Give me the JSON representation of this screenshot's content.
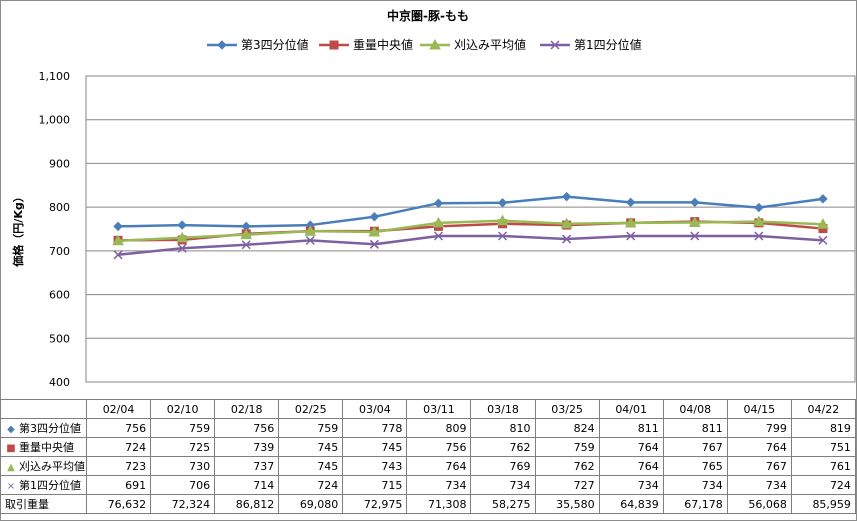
{
  "chart_data": {
    "type": "line",
    "title": "中京圏-豚-もも",
    "ylabel": "価格（円/Kg）",
    "xlabel": "",
    "ylim": [
      400,
      1100
    ],
    "yticks": [
      400,
      500,
      600,
      700,
      800,
      900,
      1000,
      1100
    ],
    "ytick_labels": [
      "400",
      "500",
      "600",
      "700",
      "800",
      "900",
      "1,000",
      "1,100"
    ],
    "grid": true,
    "legend_position": "top",
    "categories": [
      "02/04",
      "02/10",
      "02/18",
      "02/25",
      "03/04",
      "03/11",
      "03/18",
      "03/25",
      "04/01",
      "04/08",
      "04/15",
      "04/22"
    ],
    "series": [
      {
        "name": "第3四分位値",
        "color": "#4a7ebb",
        "marker": "diamond",
        "values": [
          756,
          759,
          756,
          759,
          778,
          809,
          810,
          824,
          811,
          811,
          799,
          819
        ],
        "display": [
          "756",
          "759",
          "756",
          "759",
          "778",
          "809",
          "810",
          "824",
          "811",
          "811",
          "799",
          "819"
        ]
      },
      {
        "name": "重量中央値",
        "color": "#be4b48",
        "marker": "square",
        "values": [
          724,
          725,
          739,
          745,
          745,
          756,
          762,
          759,
          764,
          767,
          764,
          751
        ],
        "display": [
          "724",
          "725",
          "739",
          "745",
          "745",
          "756",
          "762",
          "759",
          "764",
          "767",
          "764",
          "751"
        ]
      },
      {
        "name": "刈込み平均値",
        "color": "#98b954",
        "marker": "triangle",
        "values": [
          723,
          730,
          737,
          745,
          743,
          764,
          769,
          762,
          764,
          765,
          767,
          761
        ],
        "display": [
          "723",
          "730",
          "737",
          "745",
          "743",
          "764",
          "769",
          "762",
          "764",
          "765",
          "767",
          "761"
        ]
      },
      {
        "name": "第1四分位値",
        "color": "#7d60a0",
        "marker": "x",
        "values": [
          691,
          706,
          714,
          724,
          715,
          734,
          734,
          727,
          734,
          734,
          734,
          724
        ],
        "display": [
          "691",
          "706",
          "714",
          "724",
          "715",
          "734",
          "734",
          "727",
          "734",
          "734",
          "734",
          "724"
        ]
      }
    ],
    "extra_rows": [
      {
        "name": "取引重量",
        "values": [
          76632,
          72324,
          86812,
          69080,
          72975,
          71308,
          58275,
          35580,
          64839,
          67178,
          56068,
          85959
        ],
        "display": [
          "76,632",
          "72,324",
          "86,812",
          "69,080",
          "72,975",
          "71,308",
          "58,275",
          "35,580",
          "64,839",
          "67,178",
          "56,068",
          "85,959"
        ]
      }
    ]
  }
}
